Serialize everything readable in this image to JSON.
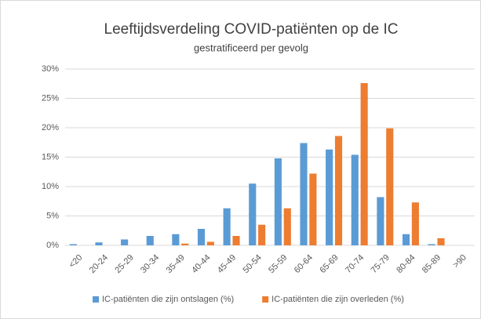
{
  "chart_data": {
    "type": "bar",
    "title": "Leeftijdsverdeling COVID-patiënten op de IC",
    "subtitle": "gestratificeerd per gevolg",
    "categories": [
      "<20",
      "20-24",
      "25-29",
      "30-34",
      "35-49",
      "40-44",
      "45-49",
      "50-54",
      "55-59",
      "60-64",
      "65-69",
      "70-74",
      "75-79",
      "80-84",
      "85-89",
      ">90"
    ],
    "series": [
      {
        "name": "IC-patiënten die zijn ontslagen (%)",
        "color": "#5b9bd5",
        "values": [
          0.2,
          0.5,
          1.0,
          1.6,
          1.9,
          2.8,
          6.3,
          10.5,
          14.8,
          17.4,
          16.3,
          15.4,
          8.2,
          1.9,
          0.2,
          0
        ]
      },
      {
        "name": "IC-patiënten die zijn overleden (%)",
        "color": "#ed7d31",
        "values": [
          0,
          0,
          0,
          0,
          0.3,
          0.6,
          1.6,
          3.5,
          6.3,
          12.2,
          18.6,
          27.6,
          19.9,
          7.3,
          1.2,
          0
        ]
      }
    ],
    "ylim": [
      0,
      30
    ],
    "yticks": [
      {
        "value": 0,
        "label": "0%"
      },
      {
        "value": 5,
        "label": "5%"
      },
      {
        "value": 10,
        "label": "10%"
      },
      {
        "value": 15,
        "label": "15%"
      },
      {
        "value": 20,
        "label": "20%"
      },
      {
        "value": 25,
        "label": "25%"
      },
      {
        "value": 30,
        "label": "30%"
      }
    ],
    "grid": true,
    "legend": "bottom"
  }
}
